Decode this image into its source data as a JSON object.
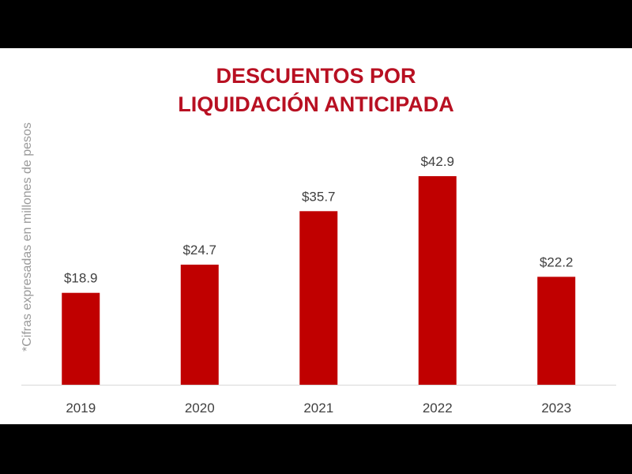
{
  "chart_data": {
    "type": "bar",
    "title_lines": [
      "DESCUENTOS POR",
      "LIQUIDACIÓN ANTICIPADA"
    ],
    "ylabel": "*Cifras expresadas en millones de pesos",
    "xlabel": "",
    "categories": [
      "2019",
      "2020",
      "2021",
      "2022",
      "2023"
    ],
    "values": [
      18.9,
      24.7,
      35.7,
      42.9,
      22.2
    ],
    "data_labels": [
      "$18.9",
      "$24.7",
      "$35.7",
      "$42.9",
      "$22.2"
    ],
    "ylim": [
      0,
      50
    ],
    "grid": false,
    "bar_color": "#c00000",
    "title_color": "#b81022"
  }
}
